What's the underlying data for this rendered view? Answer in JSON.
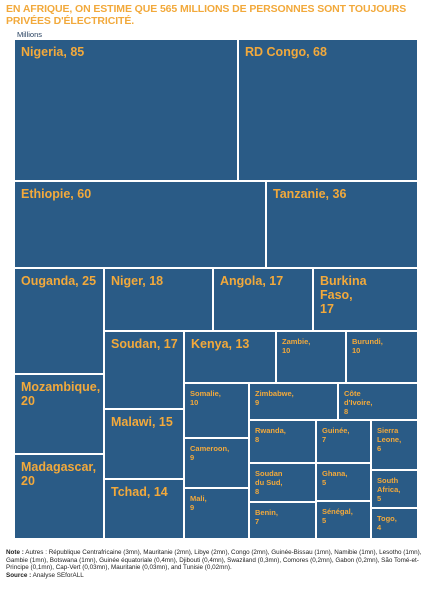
{
  "header": {
    "title": "EN AFRIQUE, ON ESTIME QUE 565 MILLIONS DE PERSONNES SONT TOUJOURS PRIVÉES D'ÉLECTRICITÉ.",
    "unit": "Millions"
  },
  "chart_data": {
    "type": "treemap",
    "title": "EN AFRIQUE, ON ESTIME QUE 565 MILLIONS DE PERSONNES SONT TOUJOURS PRIVÉES D'ÉLECTRICITÉ.",
    "unit": "Millions",
    "items": [
      {
        "name": "Nigeria",
        "value": 85
      },
      {
        "name": "RD Congo",
        "value": 68
      },
      {
        "name": "Ethiopie",
        "value": 60
      },
      {
        "name": "Tanzanie",
        "value": 36
      },
      {
        "name": "Ouganda",
        "value": 25
      },
      {
        "name": "Niger",
        "value": 18
      },
      {
        "name": "Angola",
        "value": 17
      },
      {
        "name": "Burkina Faso",
        "value": 17
      },
      {
        "name": "Soudan",
        "value": 17
      },
      {
        "name": "Kenya",
        "value": 13
      },
      {
        "name": "Zambie",
        "value": 10
      },
      {
        "name": "Burundi",
        "value": 10
      },
      {
        "name": "Mozambique",
        "value": 20
      },
      {
        "name": "Somalie",
        "value": 10
      },
      {
        "name": "Zimbabwe",
        "value": 9
      },
      {
        "name": "Côte d'Ivoire",
        "value": 8
      },
      {
        "name": "Malawi",
        "value": 15
      },
      {
        "name": "Rwanda",
        "value": 8
      },
      {
        "name": "Guinée",
        "value": 7
      },
      {
        "name": "Sierra Leone",
        "value": 6
      },
      {
        "name": "Cameroon",
        "value": 9
      },
      {
        "name": "Madagascar",
        "value": 20
      },
      {
        "name": "Soudan du Sud",
        "value": 8
      },
      {
        "name": "Ghana",
        "value": 5
      },
      {
        "name": "South Africa",
        "value": 5
      },
      {
        "name": "Tchad",
        "value": 14
      },
      {
        "name": "Mali",
        "value": 9
      },
      {
        "name": "Benin",
        "value": 7
      },
      {
        "name": "Sénégal",
        "value": 5
      },
      {
        "name": "Togo",
        "value": 4
      }
    ],
    "colors": {
      "tile": "#2A5B86",
      "label": "#F2A93B"
    }
  },
  "note": {
    "label": "Note :",
    "text": "Autres : République Centrafricaine (3mn), Mauritanie (2mn), Libye (2mn), Congo (2mn), Guinée-Bissau (1mn), Namibie (1mn), Lesotho (1mn), Gambie (1mn), Botswana (1mn), Guinée équatoriale (0,4mn), Djibouti (0,4mn), Swaziland (0,3mn), Comores (0,2mn), Gabon (0,2mn), São Tomé-et-Principe (0,1mn), Cap-Vert (0,03mn), Mauritanie (0,03mn), and Tunisie (0,02mn).",
    "source_label": "Source :",
    "source_text": "Analyse SEforALL"
  }
}
